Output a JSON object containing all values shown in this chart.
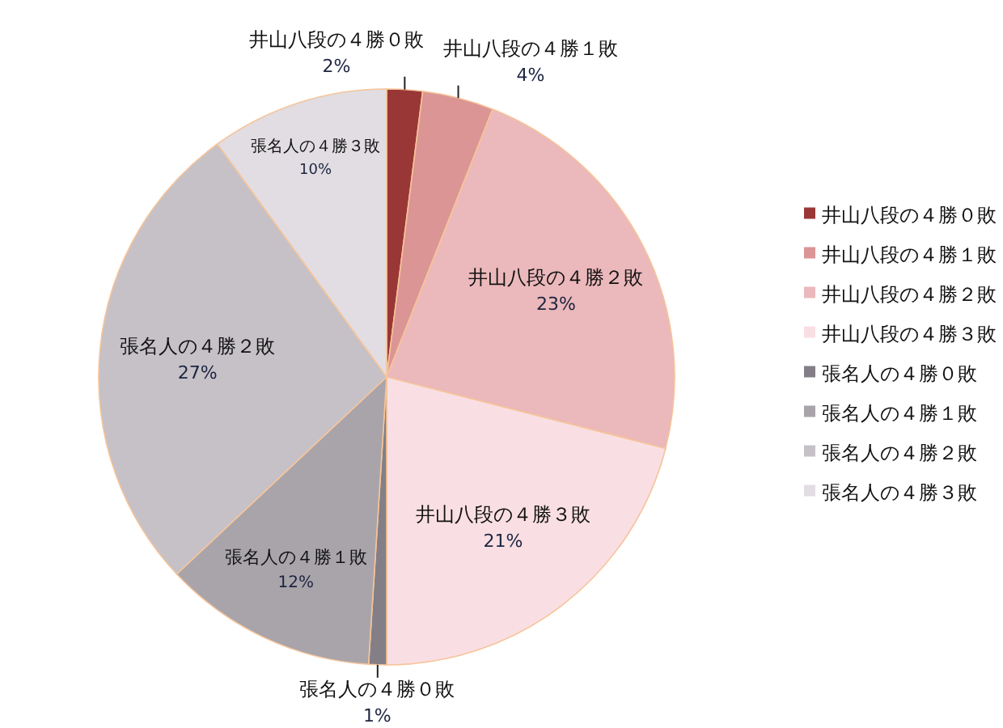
{
  "chart_data": {
    "type": "pie",
    "categories": [
      "井山八段の４勝０敗",
      "井山八段の４勝１敗",
      "井山八段の４勝２敗",
      "井山八段の４勝３敗",
      "張名人の４勝０敗",
      "張名人の４勝１敗",
      "張名人の４勝２敗",
      "張名人の４勝３敗"
    ],
    "values": [
      2,
      4,
      23,
      21,
      1,
      12,
      27,
      10
    ],
    "value_labels": [
      "2%",
      "4%",
      "23%",
      "21%",
      "1%",
      "12%",
      "27%",
      "10%"
    ],
    "colors": [
      "#993737",
      "#da9594",
      "#ebb8bb",
      "#f9dfe3",
      "#847f86",
      "#a8a4aa",
      "#c5c1c7",
      "#e1dde2"
    ],
    "legend": "right"
  }
}
